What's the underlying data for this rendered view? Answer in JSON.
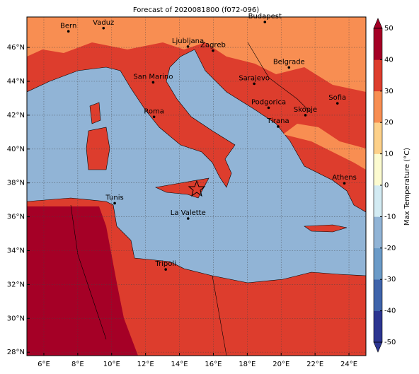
{
  "chart_data": {
    "type": "map",
    "title": "Forecast of 2020081800 (f072-096)",
    "cities": [
      "Bern",
      "Vaduz",
      "Budapest",
      "Ljubljana",
      "Zagreb",
      "Belgrade",
      "San Marino",
      "Sarajevo",
      "Sofia",
      "Podgorica",
      "Skopje",
      "Roma",
      "Tirana",
      "Athens",
      "Tunis",
      "La Valette",
      "Tripoli"
    ],
    "xlim": [
      5,
      25
    ],
    "xticks": [
      {
        "value": 6,
        "label": "6°E"
      },
      {
        "value": 8,
        "label": "8°E"
      },
      {
        "value": 10,
        "label": "10°E"
      },
      {
        "value": 12,
        "label": "12°E"
      },
      {
        "value": 14,
        "label": "14°E"
      },
      {
        "value": 16,
        "label": "16°E"
      },
      {
        "value": 18,
        "label": "18°E"
      },
      {
        "value": 20,
        "label": "20°E"
      },
      {
        "value": 22,
        "label": "22°E"
      },
      {
        "value": 24,
        "label": "24°E"
      }
    ],
    "ylim": [
      27.8,
      47.8
    ],
    "yticks": [
      {
        "value": 28,
        "label": "28°N"
      },
      {
        "value": 30,
        "label": "30°N"
      },
      {
        "value": 32,
        "label": "32°N"
      },
      {
        "value": 34,
        "label": "34°N"
      },
      {
        "value": 36,
        "label": "36°N"
      },
      {
        "value": 38,
        "label": "38°N"
      },
      {
        "value": 40,
        "label": "40°N"
      },
      {
        "value": 42,
        "label": "42°N"
      },
      {
        "value": 44,
        "label": "44°N"
      },
      {
        "value": 46,
        "label": "46°N"
      }
    ],
    "grid": true,
    "colorbar": {
      "label": "Max Temperature (°C)",
      "lim": [
        -50,
        50
      ],
      "ticks": [
        -50,
        -40,
        -30,
        -20,
        -10,
        0,
        10,
        20,
        30,
        40,
        50
      ],
      "colors": [
        "#2c3591",
        "#3f64ab",
        "#6b9bc8",
        "#91b4d6",
        "#d3ebf3",
        "#fcfbd0",
        "#fdd18a",
        "#f88e52",
        "#dd3d2d",
        "#a50026"
      ]
    }
  }
}
